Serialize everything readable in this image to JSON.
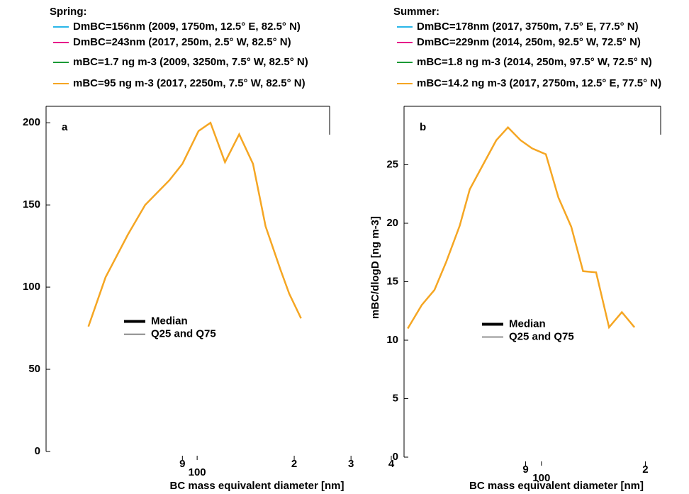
{
  "chart_data": [
    {
      "type": "line",
      "title": "a",
      "legend_title": "Spring:",
      "x_label": "BC mass equivalent diameter [nm]",
      "log_x": true,
      "xlim": [
        34,
        510
      ],
      "ylim": [
        0,
        210
      ],
      "xticks": [
        {
          "value": 90,
          "label": "9"
        },
        100,
        {
          "value": 200,
          "label": "2"
        },
        {
          "value": 300,
          "label": "3"
        },
        {
          "value": 400,
          "label": "4"
        }
      ],
      "yticks": [
        0,
        50,
        100,
        150,
        200
      ],
      "line_legend": [
        "Median",
        "Q25 and Q75"
      ],
      "series": [
        {
          "name": "DmBC=156nm (2009, 1750m,  12.5° E,  82.5° N)",
          "color": "#29b6e8"
        },
        {
          "name": "DmBC=243nm (2017, 250m,  2.5° W,  82.5° N)",
          "color": "#e6008a"
        },
        {
          "name": "mBC=1.7 ng m-3  (2009, 3250m, 7.5° W, 82.5° N)",
          "color": "#1a9a36"
        },
        {
          "name": "mBC=95 ng m-3 (2017, 2250m, 7.5° W, 82.5° N)",
          "color": "#f5a623",
          "x": [
            46,
            52,
            61,
            69,
            82,
            90,
            101,
            110,
            122,
            135,
            149,
            163,
            181,
            193,
            210
          ],
          "values": [
            76,
            106,
            132,
            150,
            165,
            175,
            195,
            200,
            176,
            193,
            175,
            137,
            111,
            96,
            81
          ]
        }
      ]
    },
    {
      "type": "line",
      "title": "b",
      "legend_title": "Summer:",
      "x_label": "BC mass equivalent diameter [nm]",
      "y_label": "mBC/dlogD [ng m-3]",
      "log_x": true,
      "xlim": [
        40,
        230
      ],
      "ylim": [
        0,
        30
      ],
      "xticks": [
        {
          "value": 90,
          "label": "9"
        },
        100,
        {
          "value": 200,
          "label": "2"
        }
      ],
      "yticks": [
        0,
        5,
        10,
        15,
        20,
        25
      ],
      "line_legend": [
        "Median",
        "Q25 and Q75"
      ],
      "series": [
        {
          "name": "DmBC=178nm (2017, 3750m, 7.5° E, 77.5° N)",
          "color": "#29b6e8"
        },
        {
          "name": "DmBC=229nm (2014, 250m, 92.5° W, 72.5° N)",
          "color": "#e6008a"
        },
        {
          "name": "mBC=1.8 ng m-3 (2014, 250m, 97.5° W, 72.5° N)",
          "color": "#1a9a36"
        },
        {
          "name": "mBC=14.2 ng m-3 (2017, 2750m, 12.5° E, 77.5° N)",
          "color": "#f5a623",
          "x": [
            41,
            45,
            49,
            53,
            58,
            62,
            68,
            74,
            80,
            87,
            94,
            103,
            112,
            122,
            132,
            144,
            157,
            171,
            186
          ],
          "values": [
            11,
            13,
            14.3,
            16.7,
            19.8,
            22.9,
            25.1,
            27.1,
            28.2,
            27.1,
            26.4,
            25.9,
            22.2,
            19.7,
            15.9,
            15.8,
            11.1,
            12.4,
            11.1
          ]
        }
      ]
    }
  ]
}
